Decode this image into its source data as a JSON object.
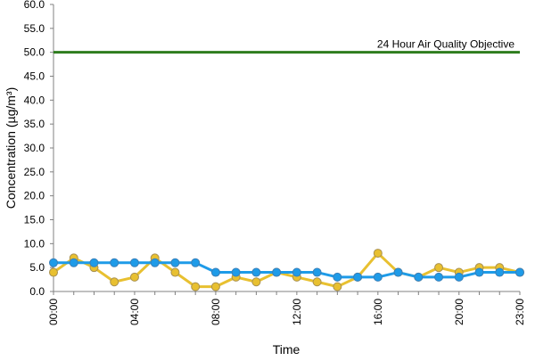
{
  "chart_data": {
    "type": "line",
    "title": "",
    "xlabel": "Time",
    "ylabel": "Concentration (µg/m³)",
    "ylim": [
      0,
      60
    ],
    "yticks": [
      "0.0",
      "5.0",
      "10.0",
      "15.0",
      "20.0",
      "25.0",
      "30.0",
      "35.0",
      "40.0",
      "45.0",
      "50.0",
      "55.0",
      "60.0"
    ],
    "x": [
      "00:00",
      "01:00",
      "02:00",
      "03:00",
      "04:00",
      "05:00",
      "06:00",
      "07:00",
      "08:00",
      "09:00",
      "10:00",
      "11:00",
      "12:00",
      "13:00",
      "14:00",
      "15:00",
      "16:00",
      "17:00",
      "18:00",
      "19:00",
      "20:00",
      "21:00",
      "22:00",
      "23:00"
    ],
    "xticks_shown": [
      "00:00",
      "04:00",
      "08:00",
      "12:00",
      "16:00",
      "20:00",
      "23:00"
    ],
    "grid": "none",
    "legend": "none",
    "series": [
      {
        "color": "#e8c030",
        "values": [
          4,
          7,
          5,
          2,
          3,
          7,
          4,
          1,
          1,
          3,
          2,
          4,
          3,
          2,
          1,
          3,
          8,
          4,
          3,
          5,
          4,
          5,
          5,
          4
        ]
      },
      {
        "color": "#1e9be8",
        "values": [
          6,
          6,
          6,
          6,
          6,
          6,
          6,
          6,
          4,
          4,
          4,
          4,
          4,
          4,
          3,
          3,
          3,
          4,
          3,
          3,
          3,
          4,
          4,
          4
        ]
      }
    ],
    "reference_line": {
      "value": 50,
      "label": "24 Hour Air Quality Objective",
      "color": "#2e7d1e"
    }
  }
}
